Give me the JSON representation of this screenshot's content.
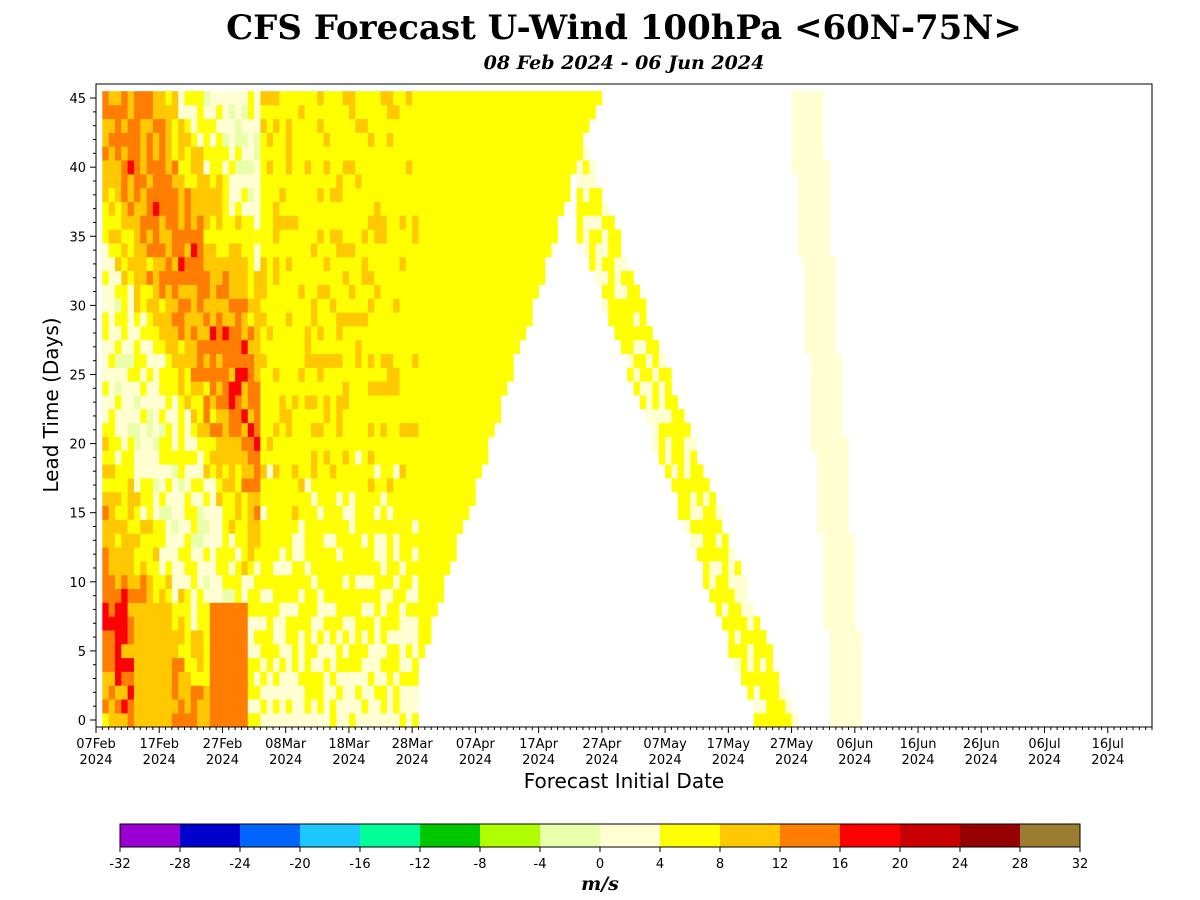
{
  "chart_data": {
    "type": "heatmap",
    "title": "CFS Forecast U-Wind 100hPa <60N-75N>",
    "subtitle": "08 Feb 2024 - 06 Jun 2024",
    "xlabel": "Forecast Initial Date",
    "ylabel": "Lead Time (Days)",
    "x_tick_labels": [
      {
        "date": "07Feb",
        "year": "2024"
      },
      {
        "date": "17Feb",
        "year": "2024"
      },
      {
        "date": "27Feb",
        "year": "2024"
      },
      {
        "date": "08Mar",
        "year": "2024"
      },
      {
        "date": "18Mar",
        "year": "2024"
      },
      {
        "date": "28Mar",
        "year": "2024"
      },
      {
        "date": "07Apr",
        "year": "2024"
      },
      {
        "date": "17Apr",
        "year": "2024"
      },
      {
        "date": "27Apr",
        "year": "2024"
      },
      {
        "date": "07May",
        "year": "2024"
      },
      {
        "date": "17May",
        "year": "2024"
      },
      {
        "date": "27May",
        "year": "2024"
      },
      {
        "date": "06Jun",
        "year": "2024"
      },
      {
        "date": "16Jun",
        "year": "2024"
      },
      {
        "date": "26Jun",
        "year": "2024"
      },
      {
        "date": "06Jul",
        "year": "2024"
      },
      {
        "date": "16Jul",
        "year": "2024"
      }
    ],
    "x_range": [
      "2024-02-07",
      "2024-07-23"
    ],
    "y_ticks": [
      0,
      5,
      10,
      15,
      20,
      25,
      30,
      35,
      40,
      45
    ],
    "y_range": [
      0,
      45
    ],
    "init_dates": [
      "2024-02-08",
      "2024-06-06"
    ],
    "description_of_field": "U-wind (m/s) by forecast initial date (x) and lead time in days (y); valid-date diagonals. Values are binned to the colorbar.",
    "bands": [
      {
        "init_start": "2024-02-08",
        "init_end": "2024-04-25",
        "lead_max": 45,
        "dominant_bin": [
          4,
          8
        ]
      },
      {
        "init_start": "2024-02-08",
        "init_end": "2024-03-03",
        "lead_max": 45,
        "dominant_bin": [
          8,
          16
        ]
      },
      {
        "init_start": "2024-03-06",
        "init_end": "2024-03-28",
        "lead_max": 20,
        "dominant_bin": [
          0,
          4
        ]
      },
      {
        "valid_start": "2024-05-21",
        "valid_end": "2024-06-20",
        "dominant_bin": [
          0,
          8
        ]
      },
      {
        "valid_start": "2024-06-02",
        "valid_end": "2024-07-18",
        "dominant_bin": [
          0,
          4
        ]
      }
    ],
    "colorbar": {
      "label": "m/s",
      "ticks": [
        -32,
        -28,
        -24,
        -20,
        -16,
        -12,
        -8,
        -4,
        0,
        4,
        8,
        12,
        16,
        20,
        24,
        28,
        32
      ],
      "colors": [
        "#9b00d2",
        "#0000cd",
        "#0064ff",
        "#1ec8ff",
        "#00ff96",
        "#00c800",
        "#afff00",
        "#eaffaa",
        "#ffffd2",
        "#ffff00",
        "#ffc800",
        "#ff7d00",
        "#ff0000",
        "#c80000",
        "#960000",
        "#9b7d32"
      ]
    }
  }
}
